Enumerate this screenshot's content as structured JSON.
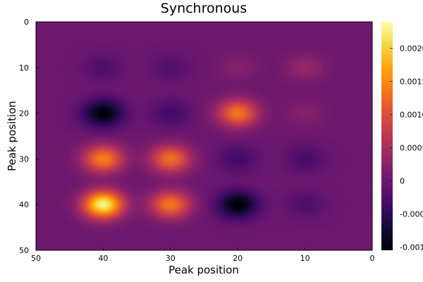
{
  "chart_data": {
    "type": "heatmap",
    "title": "Synchronous",
    "xlabel": "Peak position",
    "ylabel": "Peak position",
    "xlim": [
      50,
      0
    ],
    "ylim": [
      0,
      50
    ],
    "x_reversed": true,
    "y_reversed": true,
    "xticks": [
      50,
      40,
      30,
      20,
      10,
      0
    ],
    "yticks": [
      0,
      10,
      20,
      30,
      40,
      50
    ],
    "colormap": "inferno",
    "colorbar": {
      "min": -0.00105,
      "max": 0.0024,
      "ticks": [
        {
          "value": 0.002,
          "label": "0.0020"
        },
        {
          "value": 0.0015,
          "label": "0.0015"
        },
        {
          "value": 0.001,
          "label": "0.0010"
        },
        {
          "value": 0.0005,
          "label": "0.0005"
        },
        {
          "value": 0.0,
          "label": "0"
        },
        {
          "value": -0.0005,
          "label": "-0.0005"
        },
        {
          "value": -0.001,
          "label": "-0.0010"
        }
      ]
    },
    "background_value": 0.0,
    "blob_sigma": 2.1,
    "peaks": [
      {
        "x": 40,
        "y": 10,
        "value": -0.00025
      },
      {
        "x": 30,
        "y": 10,
        "value": -0.00022
      },
      {
        "x": 20,
        "y": 10,
        "value": 0.0002
      },
      {
        "x": 10,
        "y": 10,
        "value": 0.00035
      },
      {
        "x": 40,
        "y": 20,
        "value": -0.00105
      },
      {
        "x": 30,
        "y": 20,
        "value": -0.00035
      },
      {
        "x": 20,
        "y": 20,
        "value": 0.00135
      },
      {
        "x": 10,
        "y": 20,
        "value": 0.0002
      },
      {
        "x": 40,
        "y": 30,
        "value": 0.00145
      },
      {
        "x": 30,
        "y": 30,
        "value": 0.0013
      },
      {
        "x": 20,
        "y": 30,
        "value": -0.00035
      },
      {
        "x": 10,
        "y": 30,
        "value": -0.0003
      },
      {
        "x": 40,
        "y": 40,
        "value": 0.0023
      },
      {
        "x": 30,
        "y": 40,
        "value": 0.00135
      },
      {
        "x": 20,
        "y": 40,
        "value": -0.00105
      },
      {
        "x": 10,
        "y": 40,
        "value": -0.00025
      }
    ]
  }
}
